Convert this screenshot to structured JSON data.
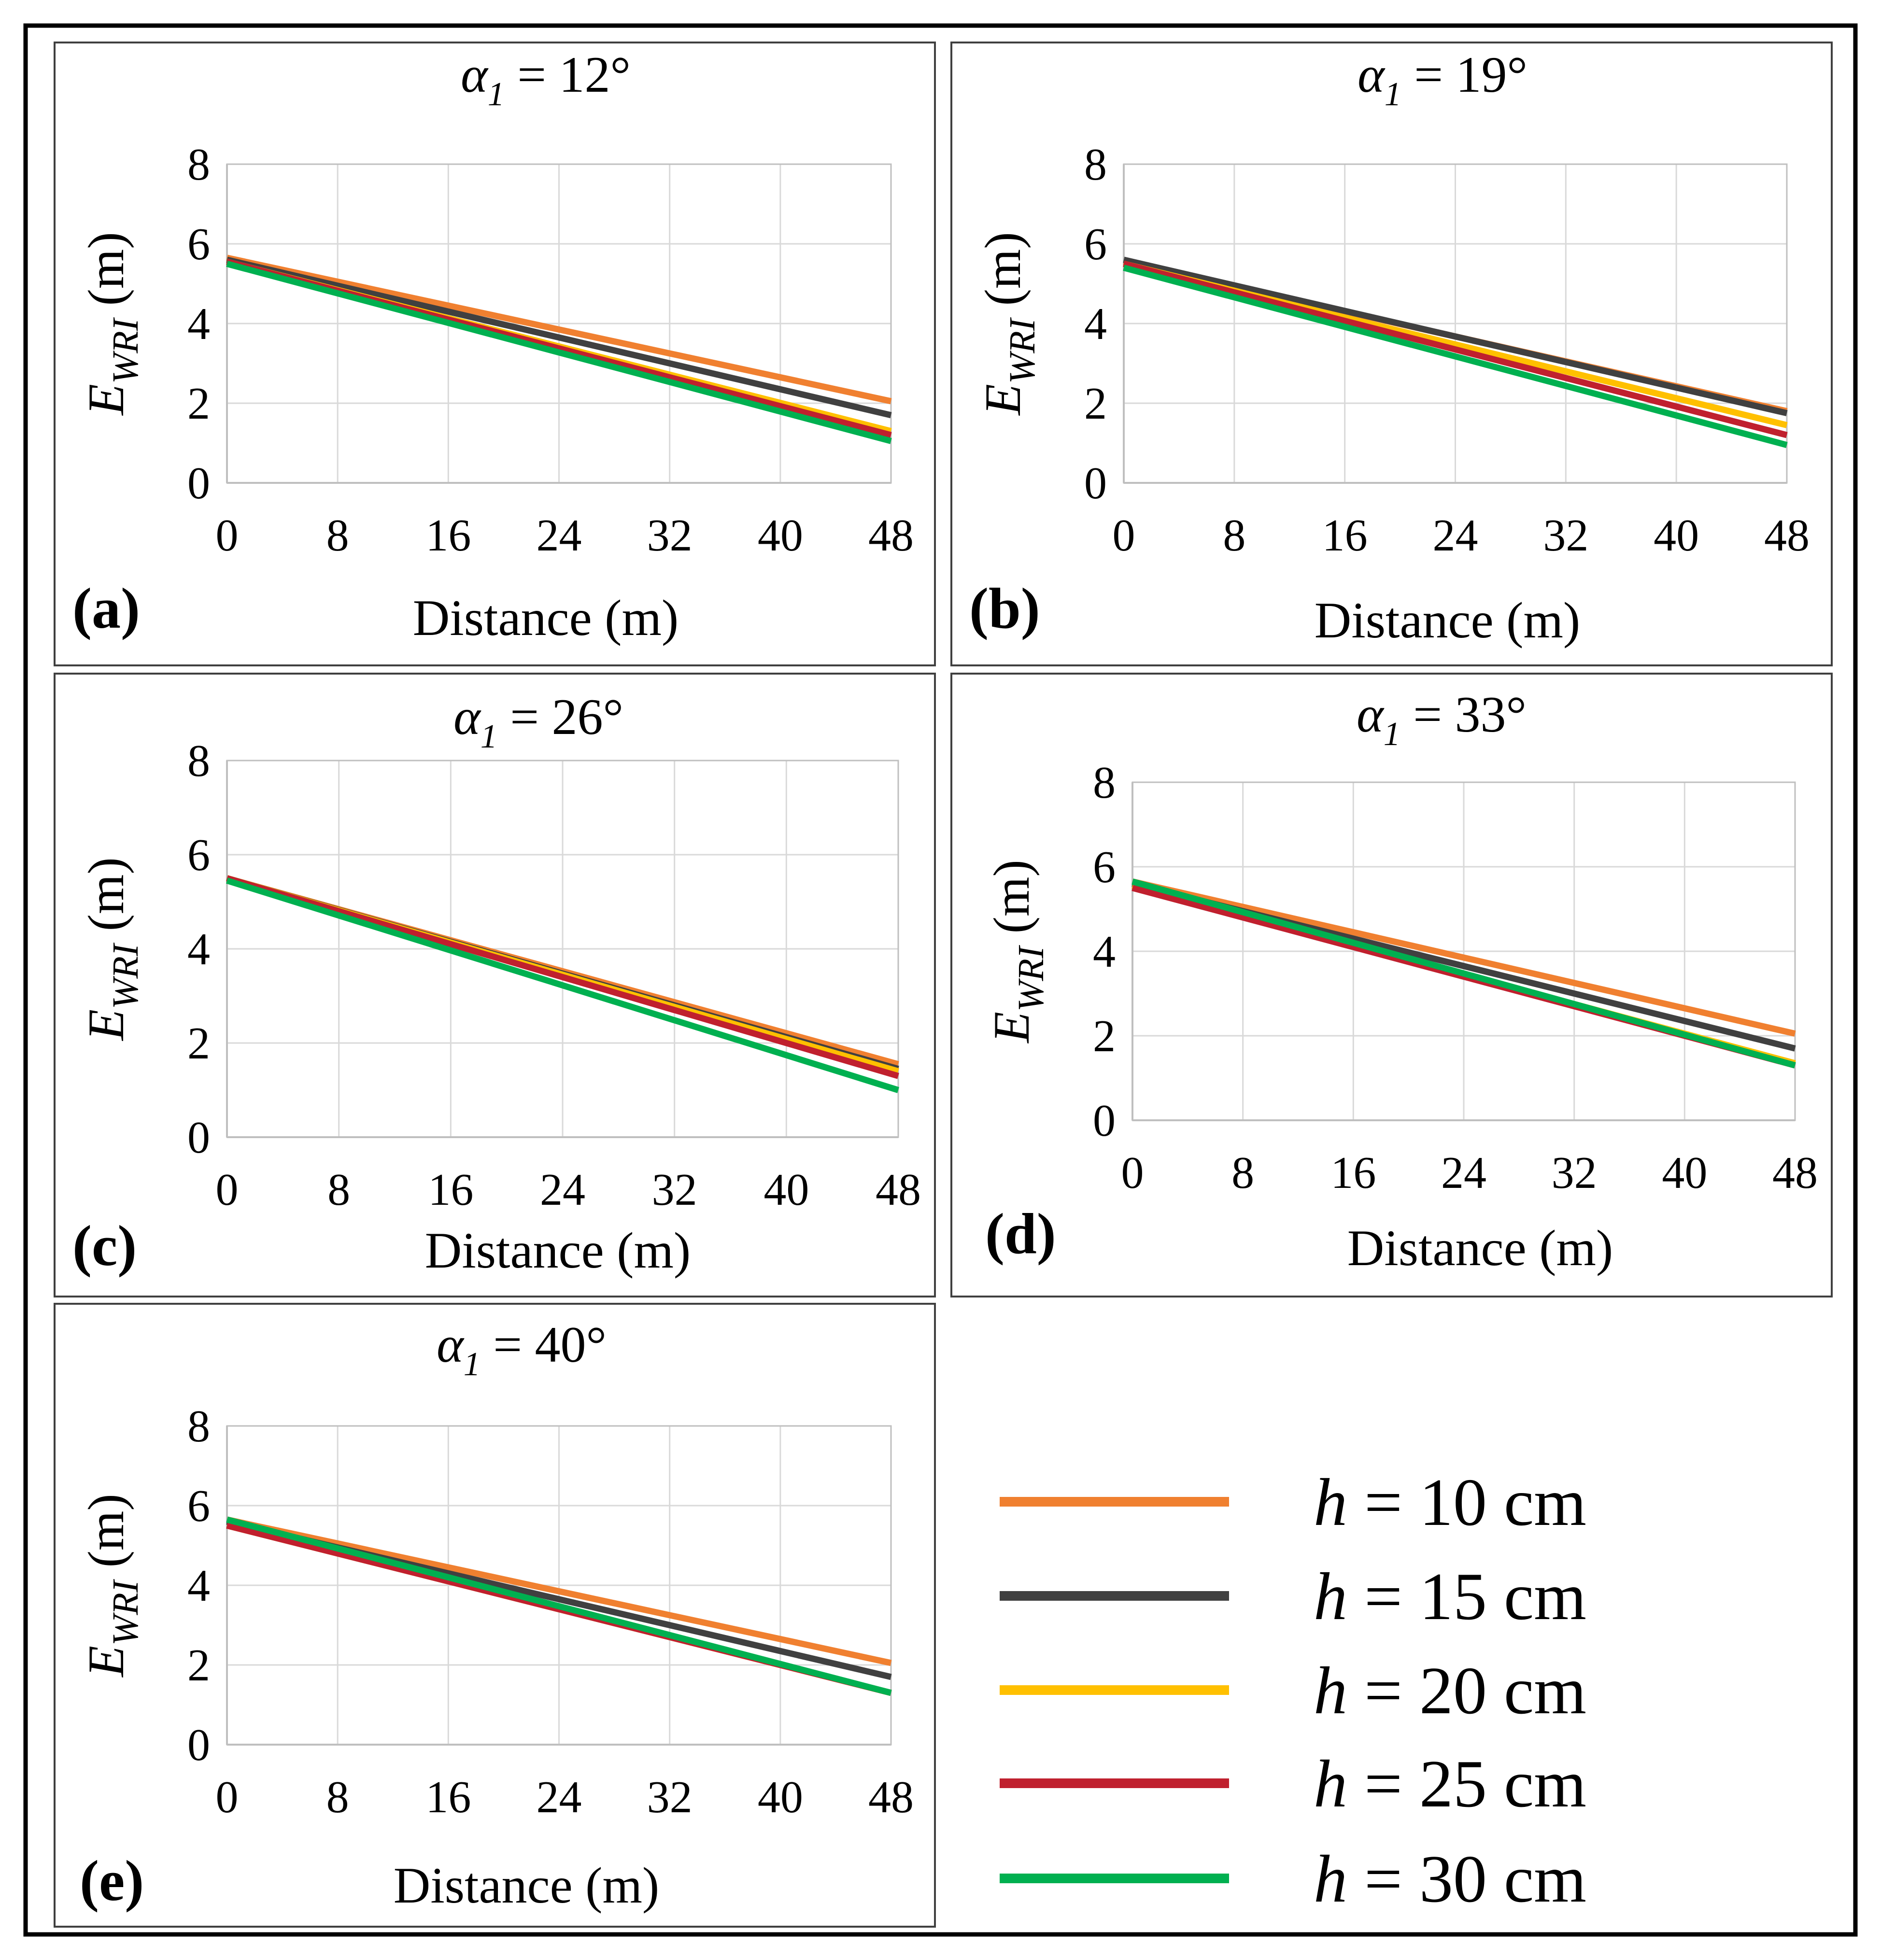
{
  "figure": {
    "legend": [
      {
        "var": "h",
        "label": " = 10 cm",
        "color": "#F08030"
      },
      {
        "var": "h",
        "label": " = 15 cm",
        "color": "#404040"
      },
      {
        "var": "h",
        "label": " = 20 cm",
        "color": "#FFC000"
      },
      {
        "var": "h",
        "label": " = 25 cm",
        "color": "#C0202E"
      },
      {
        "var": "h",
        "label": " = 30 cm",
        "color": "#00B050"
      }
    ]
  },
  "chart_data": [
    {
      "type": "line",
      "panel": "(a)",
      "title_symbol": "α",
      "title_sub": "1",
      "title_rest": " = 12°",
      "xlabel": "Distance (m)",
      "ylabel_main": "E",
      "ylabel_sub": "WRI",
      "ylabel_rest": " (m)",
      "x": [
        0,
        48
      ],
      "xticks": [
        0,
        8,
        16,
        24,
        32,
        40,
        48
      ],
      "yticks": [
        0,
        2,
        4,
        6,
        8
      ],
      "xlim": [
        0,
        48
      ],
      "ylim": [
        0,
        8
      ],
      "series": [
        {
          "name": "h = 10 cm",
          "values": [
            5.65,
            2.05
          ]
        },
        {
          "name": "h = 15 cm",
          "values": [
            5.6,
            1.7
          ]
        },
        {
          "name": "h = 20 cm",
          "values": [
            5.55,
            1.3
          ]
        },
        {
          "name": "h = 25 cm",
          "values": [
            5.55,
            1.2
          ]
        },
        {
          "name": "h = 30 cm",
          "values": [
            5.5,
            1.05
          ]
        }
      ]
    },
    {
      "type": "line",
      "panel": "(b)",
      "title_symbol": "α",
      "title_sub": "1",
      "title_rest": " = 19°",
      "xlabel": "Distance (m)",
      "ylabel_main": "E",
      "ylabel_sub": "WRI",
      "ylabel_rest": " (m)",
      "x": [
        0,
        48
      ],
      "xticks": [
        0,
        8,
        16,
        24,
        32,
        40,
        48
      ],
      "yticks": [
        0,
        2,
        4,
        6,
        8
      ],
      "xlim": [
        0,
        48
      ],
      "ylim": [
        0,
        8
      ],
      "series": [
        {
          "name": "h = 10 cm",
          "values": [
            5.55,
            1.8
          ]
        },
        {
          "name": "h = 15 cm",
          "values": [
            5.6,
            1.75
          ]
        },
        {
          "name": "h = 20 cm",
          "values": [
            5.5,
            1.45
          ]
        },
        {
          "name": "h = 25 cm",
          "values": [
            5.5,
            1.2
          ]
        },
        {
          "name": "h = 30 cm",
          "values": [
            5.4,
            0.95
          ]
        }
      ]
    },
    {
      "type": "line",
      "panel": "(c)",
      "title_symbol": "α",
      "title_sub": "1",
      "title_rest": " = 26°",
      "xlabel": "Distance (m)",
      "ylabel_main": "E",
      "ylabel_sub": "WRI",
      "ylabel_rest": " (m)",
      "x": [
        0,
        48
      ],
      "xticks": [
        0,
        8,
        16,
        24,
        32,
        40,
        48
      ],
      "yticks": [
        0,
        2,
        4,
        6,
        8
      ],
      "xlim": [
        0,
        48
      ],
      "ylim": [
        0,
        8
      ],
      "series": [
        {
          "name": "h = 10 cm",
          "values": [
            5.5,
            1.55
          ]
        },
        {
          "name": "h = 15 cm",
          "values": [
            5.5,
            1.45
          ]
        },
        {
          "name": "h = 20 cm",
          "values": [
            5.5,
            1.4
          ]
        },
        {
          "name": "h = 25 cm",
          "values": [
            5.5,
            1.3
          ]
        },
        {
          "name": "h = 30 cm",
          "values": [
            5.45,
            1.0
          ]
        }
      ]
    },
    {
      "type": "line",
      "panel": "(d)",
      "title_symbol": "α",
      "title_sub": "1",
      "title_rest": " = 33°",
      "xlabel": "Distance (m)",
      "ylabel_main": "E",
      "ylabel_sub": "WRI",
      "ylabel_rest": " (m)",
      "x": [
        0,
        48
      ],
      "xticks": [
        0,
        8,
        16,
        24,
        32,
        40,
        48
      ],
      "yticks": [
        0,
        2,
        4,
        6,
        8
      ],
      "xlim": [
        0,
        48
      ],
      "ylim": [
        0,
        8
      ],
      "series": [
        {
          "name": "h = 10 cm",
          "values": [
            5.65,
            2.05
          ]
        },
        {
          "name": "h = 15 cm",
          "values": [
            5.6,
            1.7
          ]
        },
        {
          "name": "h = 20 cm",
          "values": [
            5.55,
            1.35
          ]
        },
        {
          "name": "h = 25 cm",
          "values": [
            5.5,
            1.3
          ]
        },
        {
          "name": "h = 30 cm",
          "values": [
            5.65,
            1.3
          ]
        }
      ]
    },
    {
      "type": "line",
      "panel": "(e)",
      "title_symbol": "α",
      "title_sub": "1",
      "title_rest": " = 40°",
      "xlabel": "Distance (m)",
      "ylabel_main": "E",
      "ylabel_sub": "WRI",
      "ylabel_rest": " (m)",
      "x": [
        0,
        48
      ],
      "xticks": [
        0,
        8,
        16,
        24,
        32,
        40,
        48
      ],
      "yticks": [
        0,
        2,
        4,
        6,
        8
      ],
      "xlim": [
        0,
        48
      ],
      "ylim": [
        0,
        8
      ],
      "series": [
        {
          "name": "h = 10 cm",
          "values": [
            5.65,
            2.05
          ]
        },
        {
          "name": "h = 15 cm",
          "values": [
            5.6,
            1.7
          ]
        },
        {
          "name": "h = 20 cm",
          "values": [
            5.5,
            1.3
          ]
        },
        {
          "name": "h = 25 cm",
          "values": [
            5.5,
            1.3
          ]
        },
        {
          "name": "h = 30 cm",
          "values": [
            5.65,
            1.3
          ]
        }
      ]
    }
  ]
}
